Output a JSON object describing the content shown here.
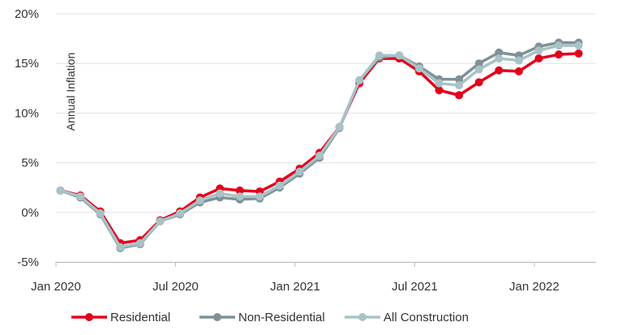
{
  "chart_data": {
    "type": "line",
    "title": "",
    "xlabel": "",
    "ylabel": "Annual Inflation",
    "ylim": [
      -0.05,
      0.2
    ],
    "y_ticks": [
      {
        "value": 0.2,
        "label": "20%"
      },
      {
        "value": 0.15,
        "label": "15%"
      },
      {
        "value": 0.1,
        "label": "10%"
      },
      {
        "value": 0.05,
        "label": "5%"
      },
      {
        "value": 0.0,
        "label": "0%"
      },
      {
        "value": -0.05,
        "label": "-5%"
      }
    ],
    "x_ticks": [
      {
        "value": "2020-01",
        "label": "Jan 2020"
      },
      {
        "value": "2020-07",
        "label": "Jul 2020"
      },
      {
        "value": "2021-01",
        "label": "Jan 2021"
      },
      {
        "value": "2021-07",
        "label": "Jul 2021"
      },
      {
        "value": "2022-01",
        "label": "Jan 2022"
      }
    ],
    "x": [
      "2020-01",
      "2020-02",
      "2020-03",
      "2020-04",
      "2020-05",
      "2020-06",
      "2020-07",
      "2020-08",
      "2020-09",
      "2020-10",
      "2020-11",
      "2020-12",
      "2021-01",
      "2021-02",
      "2021-03",
      "2021-04",
      "2021-05",
      "2021-06",
      "2021-07",
      "2021-08",
      "2021-09",
      "2021-10",
      "2021-11",
      "2021-12",
      "2022-01",
      "2022-02",
      "2022-03"
    ],
    "grid": true,
    "legend_position": "bottom",
    "series": [
      {
        "name": "Residential",
        "color": "#e3001b",
        "values": [
          0.022,
          0.017,
          0.001,
          -0.031,
          -0.028,
          -0.008,
          0.001,
          0.015,
          0.024,
          0.022,
          0.021,
          0.031,
          0.044,
          0.06,
          0.086,
          0.13,
          0.155,
          0.155,
          0.142,
          0.123,
          0.118,
          0.131,
          0.143,
          0.142,
          0.155,
          0.159,
          0.16
        ]
      },
      {
        "name": "Non-Residential",
        "color": "#7e9197",
        "values": [
          0.022,
          0.015,
          -0.002,
          -0.036,
          -0.032,
          -0.009,
          -0.002,
          0.01,
          0.015,
          0.013,
          0.014,
          0.025,
          0.039,
          0.055,
          0.085,
          0.133,
          0.156,
          0.158,
          0.147,
          0.134,
          0.134,
          0.15,
          0.161,
          0.158,
          0.167,
          0.171,
          0.171
        ]
      },
      {
        "name": "All Construction",
        "color": "#a9c2c6",
        "values": [
          0.022,
          0.016,
          -0.001,
          -0.035,
          -0.031,
          -0.009,
          -0.001,
          0.012,
          0.019,
          0.016,
          0.016,
          0.027,
          0.041,
          0.057,
          0.086,
          0.133,
          0.158,
          0.158,
          0.145,
          0.13,
          0.128,
          0.144,
          0.155,
          0.153,
          0.163,
          0.168,
          0.168
        ]
      }
    ]
  }
}
